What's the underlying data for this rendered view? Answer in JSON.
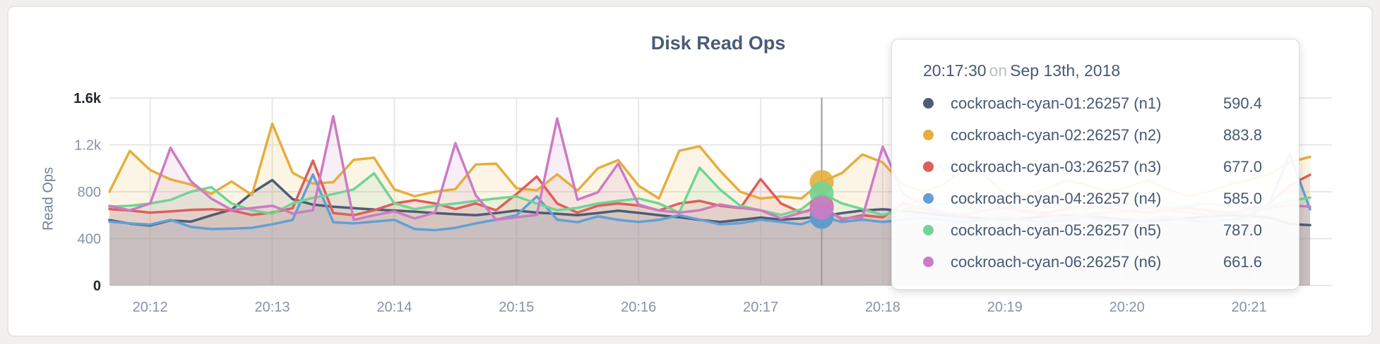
{
  "colors": {
    "page_bg": "#F1F0EE",
    "card_border": "#E7E6E3",
    "title": "#4A5C77",
    "slate": "#475872",
    "tick": "#8792A4",
    "tick_emphasis": "#23272F",
    "grid": "#E8E7E5",
    "crosshair": "#98999B"
  },
  "tooltip": {
    "time": "20:17:30",
    "conjunction": "on",
    "date": "Sep 13th, 2018"
  },
  "chart_data": {
    "type": "line",
    "title": "Disk Read Ops",
    "ylabel": "Read Ops",
    "grid": true,
    "ylim": [
      0,
      1600
    ],
    "y_ticks": [
      {
        "value": 0,
        "label": "0",
        "emphasized": true
      },
      {
        "value": 400,
        "label": "400",
        "emphasized": false
      },
      {
        "value": 800,
        "label": "800",
        "emphasized": false
      },
      {
        "value": 1200,
        "label": "1.2k",
        "emphasized": false
      },
      {
        "value": 1600,
        "label": "1.6k",
        "emphasized": true
      }
    ],
    "x_axis": {
      "start": "20:11:40",
      "end": "20:21:30",
      "interval_seconds": 10,
      "ticks": [
        {
          "label": "20:12",
          "offset_seconds": 20
        },
        {
          "label": "20:13",
          "offset_seconds": 80
        },
        {
          "label": "20:14",
          "offset_seconds": 140
        },
        {
          "label": "20:15",
          "offset_seconds": 200
        },
        {
          "label": "20:16",
          "offset_seconds": 260
        },
        {
          "label": "20:17",
          "offset_seconds": 320
        },
        {
          "label": "20:18",
          "offset_seconds": 380
        },
        {
          "label": "20:19",
          "offset_seconds": 440
        },
        {
          "label": "20:20",
          "offset_seconds": 500
        },
        {
          "label": "20:21",
          "offset_seconds": 560
        }
      ]
    },
    "hover": {
      "time": "20:17:30",
      "index": 35
    },
    "series": [
      {
        "name": "cockroach-cyan-01:26257 (n1)",
        "node": "n1",
        "color": "#4E5B77",
        "hover_value": 590.4,
        "values": [
          558,
          528,
          512,
          556,
          545,
          598,
          648,
          790,
          900,
          737,
          690,
          672,
          660,
          648,
          640,
          630,
          618,
          608,
          600,
          618,
          640,
          622,
          612,
          600,
          618,
          638,
          620,
          600,
          582,
          560,
          542,
          560,
          580,
          562,
          572,
          590.4,
          618,
          640,
          650,
          638,
          618,
          600,
          585,
          570,
          560,
          575,
          590,
          600,
          590,
          575,
          562,
          550,
          560,
          575,
          590,
          600,
          592,
          580,
          525,
          515
        ]
      },
      {
        "name": "cockroach-cyan-02:26257 (n2)",
        "node": "n2",
        "color": "#E5AE3D",
        "hover_value": 883.8,
        "values": [
          800,
          1148,
          985,
          905,
          862,
          782,
          888,
          772,
          1380,
          962,
          870,
          882,
          1072,
          1090,
          820,
          762,
          800,
          822,
          1032,
          1040,
          830,
          812,
          948,
          810,
          1000,
          1070,
          852,
          742,
          1150,
          1188,
          980,
          800,
          742,
          760,
          742,
          883.8,
          960,
          1118,
          1050,
          860,
          800,
          862,
          1000,
          940,
          782,
          762,
          822,
          898,
          858,
          800,
          840,
          898,
          822,
          762,
          800,
          860,
          900,
          950,
          1052,
          1098
        ]
      },
      {
        "name": "cockroach-cyan-03:26257 (n3)",
        "node": "n3",
        "color": "#DD5F5A",
        "hover_value": 677.0,
        "values": [
          652,
          640,
          622,
          632,
          645,
          650,
          640,
          602,
          622,
          660,
          1065,
          618,
          600,
          642,
          700,
          728,
          700,
          652,
          700,
          642,
          780,
          930,
          700,
          622,
          680,
          700,
          682,
          640,
          700,
          722,
          680,
          660,
          908,
          700,
          622,
          677,
          562,
          600,
          582,
          700,
          652,
          622,
          600,
          640,
          660,
          640,
          620,
          650,
          680,
          660,
          640,
          620,
          648,
          662,
          640,
          622,
          600,
          700,
          855,
          945
        ]
      },
      {
        "name": "cockroach-cyan-04:26257 (n4)",
        "node": "n4",
        "color": "#62A0D4",
        "hover_value": 585.0,
        "values": [
          545,
          530,
          520,
          560,
          500,
          482,
          486,
          492,
          522,
          560,
          948,
          540,
          530,
          545,
          560,
          482,
          472,
          492,
          530,
          562,
          600,
          760,
          562,
          540,
          590,
          560,
          542,
          560,
          600,
          562,
          522,
          532,
          562,
          542,
          522,
          585,
          542,
          562,
          542,
          560,
          580,
          560,
          540,
          560,
          580,
          560,
          540,
          560,
          580,
          560,
          545,
          560,
          580,
          560,
          540,
          560,
          580,
          700,
          1120,
          650
        ]
      },
      {
        "name": "cockroach-cyan-05:26257 (n5)",
        "node": "n5",
        "color": "#72D493",
        "hover_value": 787.0,
        "values": [
          672,
          680,
          700,
          730,
          800,
          840,
          700,
          642,
          612,
          700,
          748,
          780,
          820,
          958,
          700,
          652,
          680,
          700,
          722,
          742,
          760,
          700,
          642,
          662,
          700,
          722,
          742,
          700,
          622,
          1005,
          820,
          680,
          642,
          602,
          650,
          787,
          700,
          652,
          602,
          650,
          680,
          700,
          660,
          640,
          660,
          700,
          720,
          680,
          650,
          680,
          700,
          680,
          660,
          680,
          700,
          680,
          660,
          680,
          722,
          750
        ]
      },
      {
        "name": "cockroach-cyan-06:26257 (n6)",
        "node": "n6",
        "color": "#CC7BC4",
        "hover_value": 661.6,
        "values": [
          680,
          642,
          700,
          1175,
          890,
          742,
          645,
          660,
          680,
          615,
          642,
          1445,
          560,
          600,
          632,
          572,
          622,
          1215,
          770,
          562,
          582,
          602,
          1425,
          732,
          795,
          1040,
          690,
          640,
          622,
          642,
          692,
          662,
          642,
          572,
          622,
          661.6,
          572,
          582,
          1185,
          782,
          682,
          622,
          602,
          642,
          662,
          622,
          602,
          582,
          602,
          622,
          642,
          662,
          642,
          622,
          602,
          622,
          642,
          662,
          685,
          672
        ]
      }
    ]
  }
}
